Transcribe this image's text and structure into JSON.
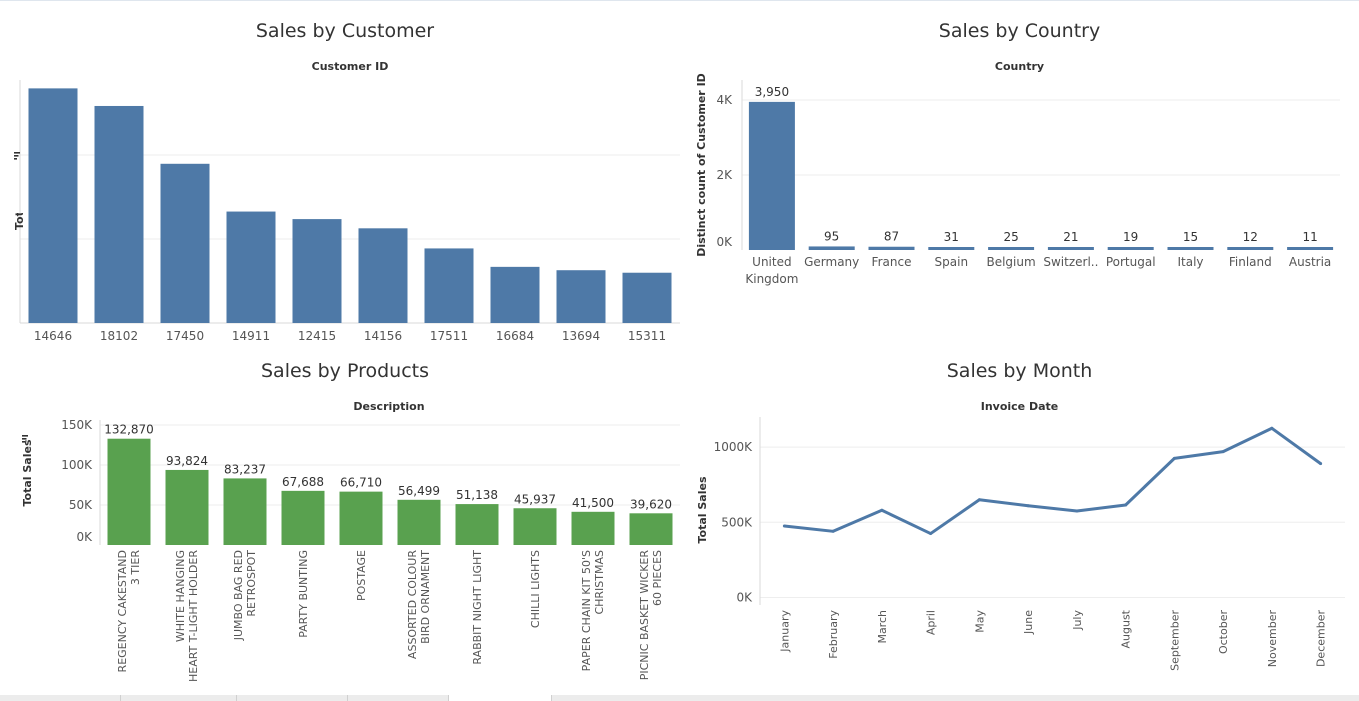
{
  "colors": {
    "blue": "#4e79a7",
    "green": "#59a14f",
    "grid": "#eeeeee",
    "axis": "#d9d9d9",
    "text": "#333333",
    "tick": "#555555"
  },
  "chart_data": [
    {
      "id": "customer",
      "type": "bar",
      "title": "Sales by Customer",
      "xlabel": "Customer ID",
      "ylabel": "Total Sales",
      "categories": [
        "14646",
        "18102",
        "17450",
        "14911",
        "12415",
        "14156",
        "17511",
        "16684",
        "13694",
        "15311"
      ],
      "values": [
        280000,
        259000,
        190000,
        133000,
        124000,
        113000,
        89000,
        67000,
        63000,
        60000
      ],
      "ylim": [
        0,
        290000
      ],
      "grid": true,
      "color_key": "blue"
    },
    {
      "id": "country",
      "type": "bar",
      "title": "Sales by Country",
      "xlabel": "Country",
      "ylabel": "Distinct count of Customer ID",
      "categories": [
        "United Kingdom",
        "Germany",
        "France",
        "Spain",
        "Belgium",
        "Switzerl..",
        "Portugal",
        "Italy",
        "Finland",
        "Austria"
      ],
      "values": [
        3950,
        95,
        87,
        31,
        25,
        21,
        19,
        15,
        12,
        11
      ],
      "data_labels": [
        "3,950",
        "95",
        "87",
        "31",
        "25",
        "21",
        "19",
        "15",
        "12",
        "11"
      ],
      "yticks": [
        {
          "v": 0,
          "label": "0K"
        },
        {
          "v": 2000,
          "label": "2K"
        },
        {
          "v": 4000,
          "label": "4K"
        }
      ],
      "ylim": [
        0,
        4000
      ],
      "grid": true,
      "color_key": "blue"
    },
    {
      "id": "products",
      "type": "bar",
      "title": "Sales by Products",
      "xlabel": "Description",
      "ylabel": "Total Sales",
      "categories": [
        [
          "REGENCY CAKESTAND",
          "3 TIER"
        ],
        [
          "WHITE HANGING",
          "HEART T-LIGHT HOLDER"
        ],
        [
          "JUMBO BAG RED",
          "RETROSPOT"
        ],
        [
          "PARTY BUNTING"
        ],
        [
          "POSTAGE"
        ],
        [
          "ASSORTED COLOUR",
          "BIRD ORNAMENT"
        ],
        [
          "RABBIT NIGHT LIGHT"
        ],
        [
          "CHILLI LIGHTS"
        ],
        [
          "PAPER CHAIN KIT 50'S",
          "CHRISTMAS"
        ],
        [
          "PICNIC BASKET WICKER",
          "60 PIECES"
        ]
      ],
      "values": [
        132870,
        93824,
        83237,
        67688,
        66710,
        56499,
        51138,
        45937,
        41500,
        39620
      ],
      "data_labels": [
        "132,870",
        "93,824",
        "83,237",
        "67,688",
        "66,710",
        "56,499",
        "51,138",
        "45,937",
        "41,500",
        "39,620"
      ],
      "yticks": [
        {
          "v": 0,
          "label": "0K"
        },
        {
          "v": 50000,
          "label": "50K"
        },
        {
          "v": 100000,
          "label": "100K"
        },
        {
          "v": 150000,
          "label": "150K"
        }
      ],
      "ylim": [
        0,
        150000
      ],
      "grid": true,
      "color_key": "green"
    },
    {
      "id": "month",
      "type": "line",
      "title": "Sales by Month",
      "xlabel": "Invoice Date",
      "ylabel": "Total Sales",
      "categories": [
        "January",
        "February",
        "March",
        "April",
        "May",
        "June",
        "July",
        "August",
        "September",
        "October",
        "November",
        "December"
      ],
      "values": [
        475000,
        440000,
        580000,
        425000,
        650000,
        610000,
        575000,
        615000,
        925000,
        970000,
        1125000,
        890000
      ],
      "yticks": [
        {
          "v": 0,
          "label": "0K"
        },
        {
          "v": 500000,
          "label": "500K"
        },
        {
          "v": 1000000,
          "label": "1000K"
        }
      ],
      "ylim": [
        -50000,
        1200000
      ],
      "grid": true,
      "color_key": "blue"
    }
  ]
}
